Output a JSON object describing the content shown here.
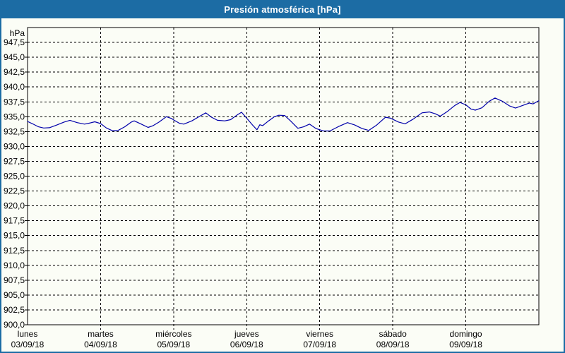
{
  "window": {
    "title": "Presión atmosférica [hPa]"
  },
  "colors": {
    "frame_blue": "#1C6CA4",
    "line_blue": "#0000AA",
    "background": "#FBFDF6",
    "grid_black": "#000000",
    "title_text": "#FFFFFF"
  },
  "chart_data": {
    "type": "line",
    "title": "Presión atmosférica [hPa]",
    "grid": "dashed",
    "legend": "none",
    "y_axis": {
      "unit_label": "hPa",
      "min": 900,
      "max": 950,
      "tick_step": 2.5,
      "decimal_separator": ",",
      "tick_labels": [
        "900,0",
        "902,5",
        "905,0",
        "907,5",
        "910,0",
        "912,5",
        "915,0",
        "917,5",
        "920,0",
        "922,5",
        "925,0",
        "927,5",
        "930,0",
        "932,5",
        "935,0",
        "937,5",
        "940,0",
        "942,5",
        "945,0",
        "947,5"
      ]
    },
    "x_axis": {
      "days": [
        {
          "name": "lunes",
          "date": "03/09/18"
        },
        {
          "name": "martes",
          "date": "04/09/18"
        },
        {
          "name": "miércoles",
          "date": "05/09/18"
        },
        {
          "name": "jueves",
          "date": "06/09/18"
        },
        {
          "name": "viernes",
          "date": "07/09/18"
        },
        {
          "name": "sábado",
          "date": "08/09/18"
        },
        {
          "name": "domingo",
          "date": "09/09/18"
        }
      ],
      "span_days": 7
    },
    "series": [
      {
        "name": "Presión atmosférica",
        "unit": "hPa",
        "color": "#0000AA",
        "points": [
          [
            0.0,
            934.2
          ],
          [
            0.07,
            933.8
          ],
          [
            0.15,
            933.3
          ],
          [
            0.22,
            933.1
          ],
          [
            0.3,
            933.15
          ],
          [
            0.4,
            933.6
          ],
          [
            0.5,
            934.1
          ],
          [
            0.58,
            934.4
          ],
          [
            0.68,
            934.0
          ],
          [
            0.78,
            933.75
          ],
          [
            0.86,
            933.95
          ],
          [
            0.92,
            934.15
          ],
          [
            1.0,
            933.85
          ],
          [
            1.08,
            933.1
          ],
          [
            1.16,
            932.65
          ],
          [
            1.24,
            932.7
          ],
          [
            1.33,
            933.3
          ],
          [
            1.42,
            934.1
          ],
          [
            1.46,
            934.3
          ],
          [
            1.55,
            933.8
          ],
          [
            1.65,
            933.2
          ],
          [
            1.72,
            933.5
          ],
          [
            1.8,
            934.1
          ],
          [
            1.9,
            935.0
          ],
          [
            1.97,
            934.7
          ],
          [
            2.0,
            934.45
          ],
          [
            2.08,
            933.9
          ],
          [
            2.14,
            933.75
          ],
          [
            2.25,
            934.3
          ],
          [
            2.36,
            935.1
          ],
          [
            2.44,
            935.65
          ],
          [
            2.52,
            934.9
          ],
          [
            2.6,
            934.4
          ],
          [
            2.7,
            934.3
          ],
          [
            2.78,
            934.5
          ],
          [
            2.87,
            935.3
          ],
          [
            2.93,
            935.75
          ],
          [
            3.0,
            934.75
          ],
          [
            3.08,
            933.6
          ],
          [
            3.14,
            932.8
          ],
          [
            3.18,
            933.65
          ],
          [
            3.22,
            933.5
          ],
          [
            3.3,
            934.3
          ],
          [
            3.38,
            935.0
          ],
          [
            3.44,
            935.25
          ],
          [
            3.52,
            935.2
          ],
          [
            3.6,
            934.3
          ],
          [
            3.7,
            933.05
          ],
          [
            3.78,
            933.3
          ],
          [
            3.86,
            933.75
          ],
          [
            3.95,
            933.0
          ],
          [
            4.05,
            932.6
          ],
          [
            4.14,
            932.6
          ],
          [
            4.25,
            933.3
          ],
          [
            4.38,
            934.0
          ],
          [
            4.48,
            933.6
          ],
          [
            4.58,
            933.0
          ],
          [
            4.67,
            932.7
          ],
          [
            4.78,
            933.6
          ],
          [
            4.9,
            934.9
          ],
          [
            4.97,
            934.75
          ],
          [
            5.08,
            934.1
          ],
          [
            5.17,
            933.8
          ],
          [
            5.28,
            934.6
          ],
          [
            5.4,
            935.65
          ],
          [
            5.5,
            935.8
          ],
          [
            5.58,
            935.5
          ],
          [
            5.65,
            935.1
          ],
          [
            5.75,
            935.9
          ],
          [
            5.85,
            936.9
          ],
          [
            5.92,
            937.4
          ],
          [
            6.0,
            937.0
          ],
          [
            6.07,
            936.3
          ],
          [
            6.13,
            936.1
          ],
          [
            6.22,
            936.5
          ],
          [
            6.32,
            937.6
          ],
          [
            6.4,
            938.15
          ],
          [
            6.5,
            937.6
          ],
          [
            6.6,
            936.8
          ],
          [
            6.68,
            936.45
          ],
          [
            6.78,
            936.9
          ],
          [
            6.87,
            937.3
          ],
          [
            6.92,
            937.15
          ],
          [
            7.0,
            937.7
          ]
        ]
      }
    ]
  }
}
